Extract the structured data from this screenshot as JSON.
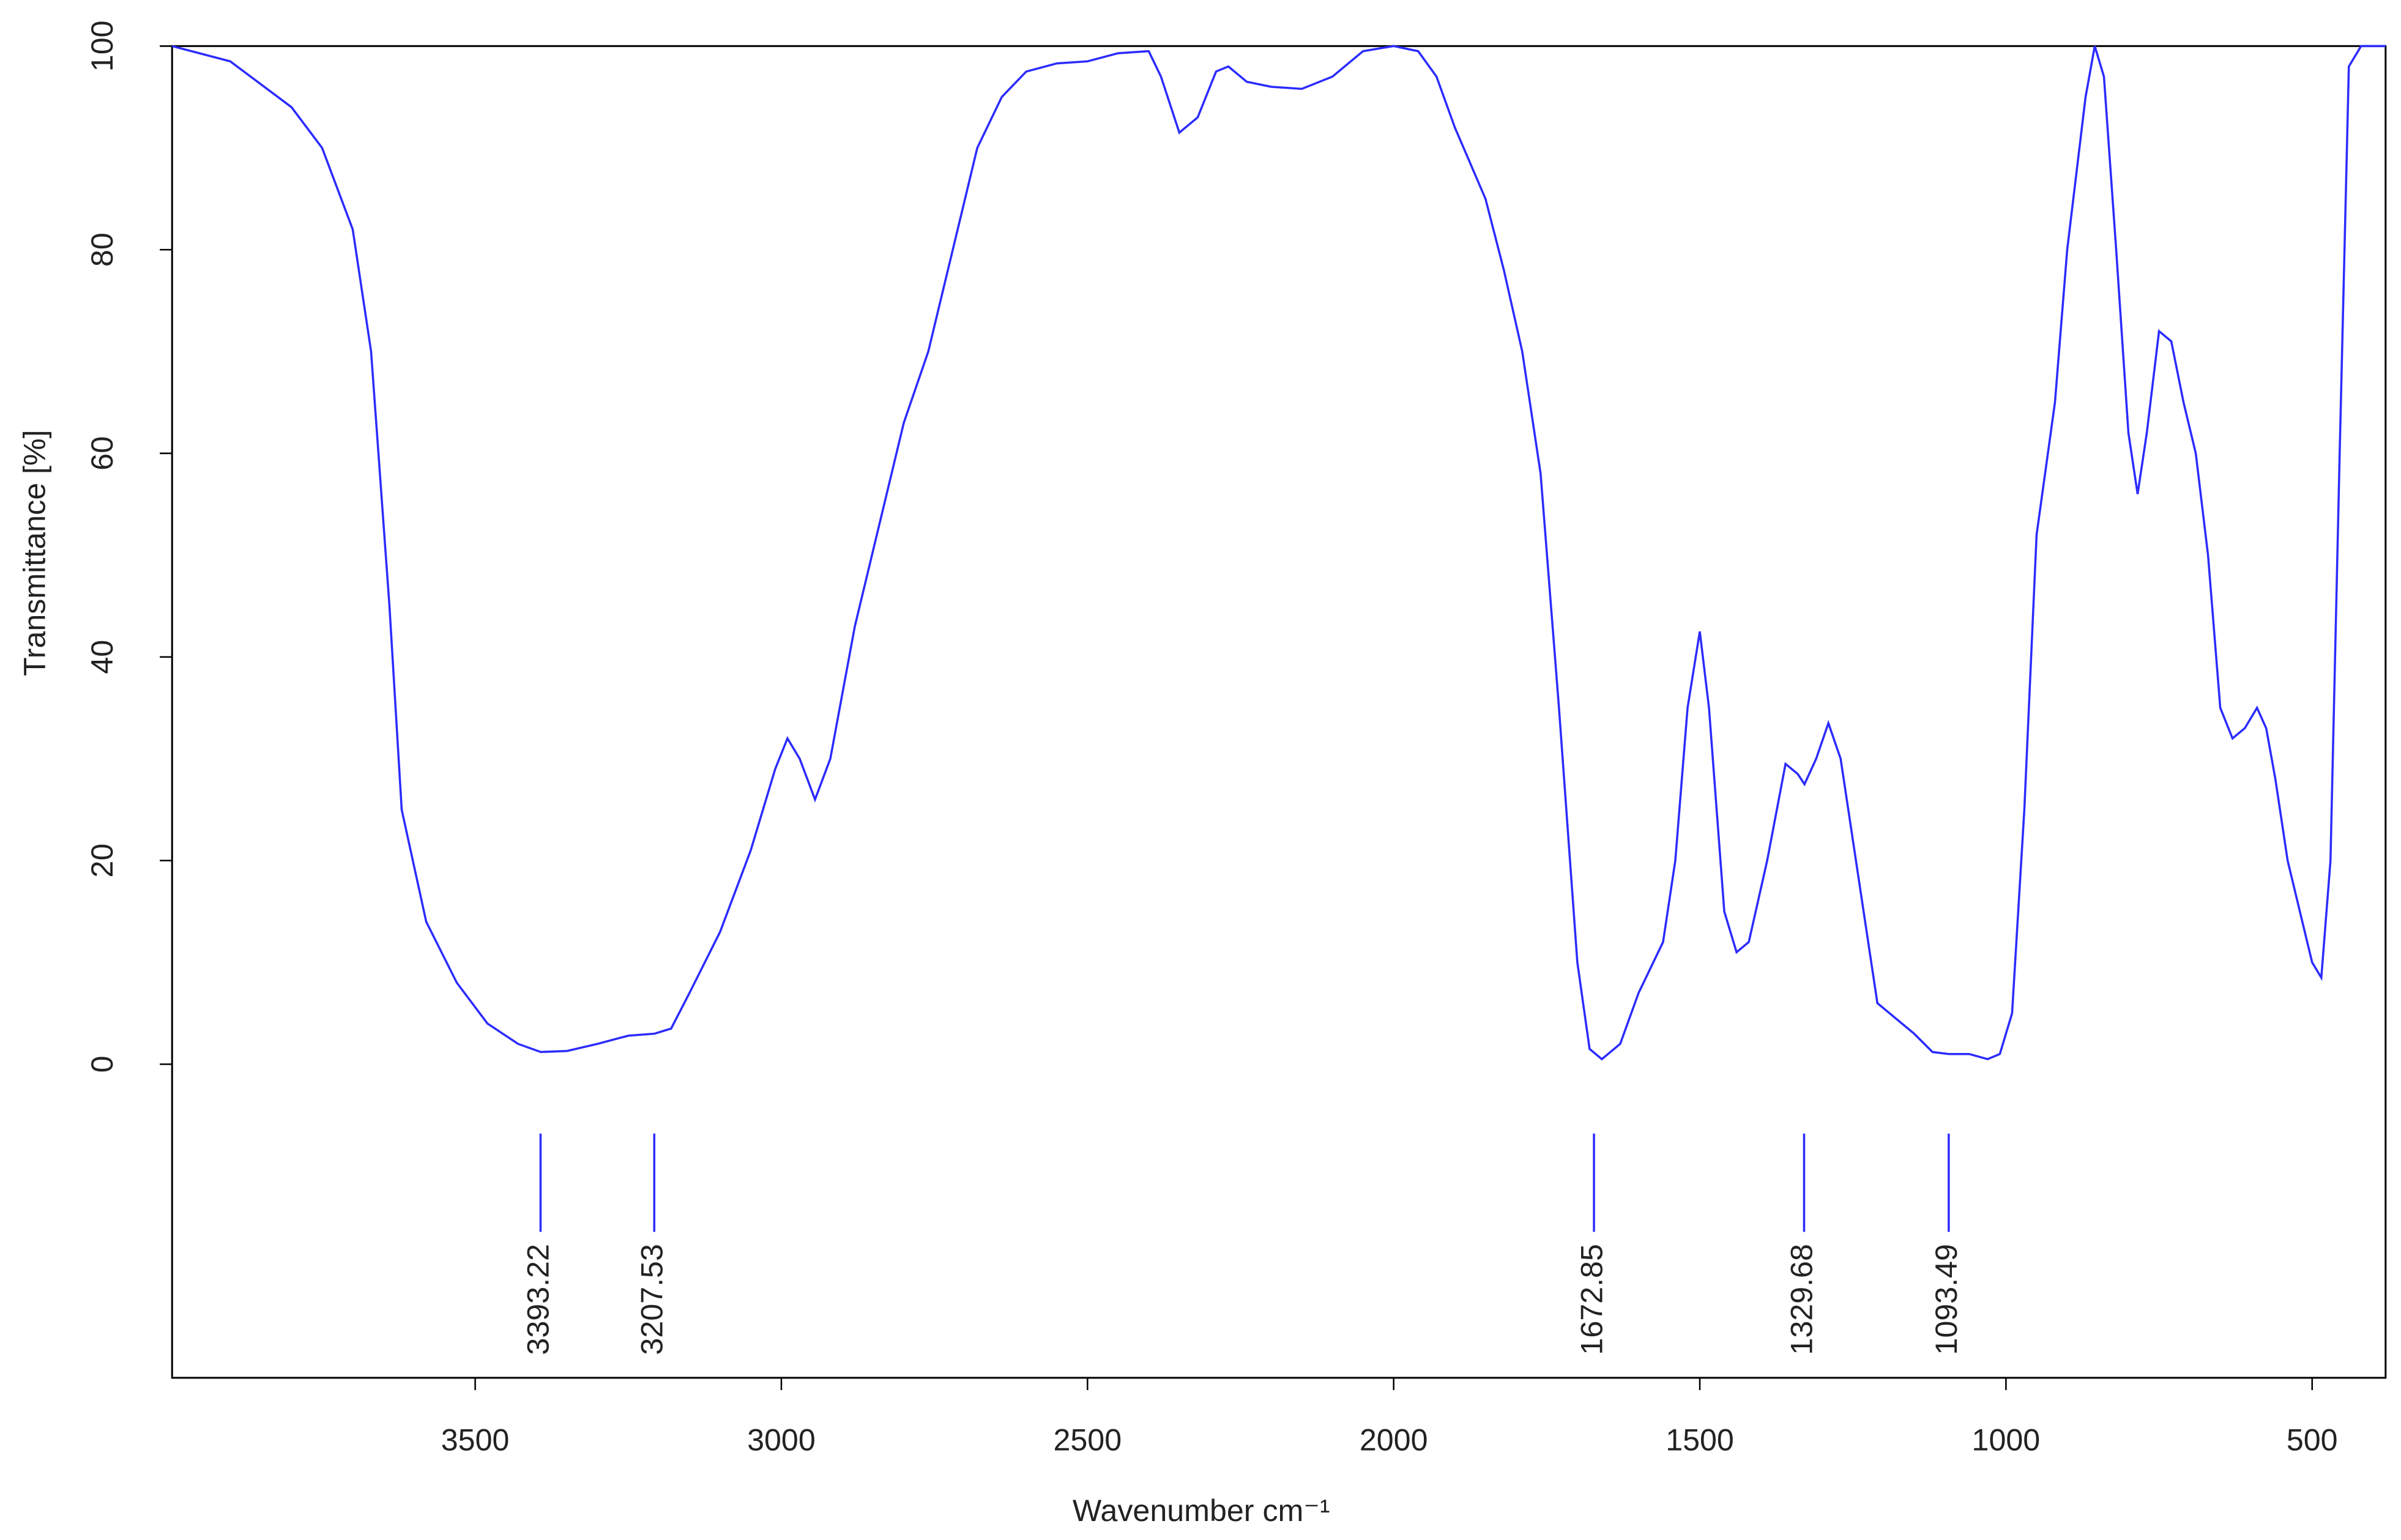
{
  "chart_data": {
    "type": "line",
    "xlabel": "Wavenumber cm⁻¹",
    "ylabel": "Transmittance [%]",
    "xlim": [
      3995,
      380
    ],
    "ylim": [
      -30.8,
      100
    ],
    "xticks": [
      3500,
      3000,
      2500,
      2000,
      1500,
      1000,
      500
    ],
    "yticks": [
      0,
      20,
      40,
      60,
      80,
      100
    ],
    "series": [
      {
        "color": "#2b2bff",
        "x": [
          3995,
          3900,
          3800,
          3750,
          3700,
          3670,
          3640,
          3620,
          3580,
          3530,
          3480,
          3430,
          3393,
          3350,
          3300,
          3250,
          3207,
          3180,
          3150,
          3100,
          3050,
          3010,
          2990,
          2970,
          2945,
          2920,
          2880,
          2840,
          2800,
          2760,
          2720,
          2680,
          2640,
          2600,
          2550,
          2500,
          2450,
          2400,
          2380,
          2350,
          2320,
          2290,
          2270,
          2240,
          2200,
          2150,
          2100,
          2050,
          2000,
          1960,
          1930,
          1900,
          1850,
          1820,
          1790,
          1760,
          1730,
          1700,
          1680,
          1660,
          1630,
          1600,
          1560,
          1540,
          1520,
          1500,
          1485,
          1460,
          1440,
          1420,
          1390,
          1360,
          1340,
          1329,
          1310,
          1290,
          1270,
          1240,
          1210,
          1180,
          1150,
          1120,
          1093,
          1060,
          1030,
          1010,
          990,
          970,
          950,
          920,
          900,
          870,
          855,
          840,
          820,
          800,
          785,
          770,
          750,
          730,
          710,
          690,
          670,
          650,
          630,
          610,
          590,
          575,
          560,
          540,
          520,
          500,
          485,
          470,
          455,
          440,
          420,
          380
        ],
        "values": [
          100,
          98.5,
          94,
          90,
          82,
          70,
          45,
          25,
          14,
          8,
          4,
          2,
          1.2,
          1.3,
          2,
          2.8,
          3,
          3.5,
          7,
          13,
          21,
          29,
          32,
          30,
          26,
          30,
          43,
          53,
          63,
          70,
          80,
          90,
          95,
          97.5,
          98.3,
          98.5,
          99.3,
          99.5,
          97,
          91.5,
          93,
          97.5,
          98,
          96.5,
          96,
          95.8,
          97,
          99.5,
          100,
          99.5,
          97,
          92,
          85,
          78,
          70,
          58,
          35,
          10,
          1.5,
          0.5,
          2,
          7,
          12,
          20,
          35,
          42.5,
          35,
          15,
          11,
          12,
          20,
          29.5,
          28.5,
          27.5,
          30,
          33.5,
          30,
          18,
          6,
          4.5,
          3,
          1.2,
          1,
          1,
          0.5,
          1,
          5,
          25,
          52,
          65,
          80,
          95,
          100,
          97,
          80,
          62,
          56,
          62,
          72,
          71,
          65,
          60,
          50,
          35,
          32,
          33,
          35,
          33,
          28,
          20,
          15,
          10,
          8.5,
          20,
          60,
          98,
          100,
          100
        ]
      }
    ],
    "peaks": [
      3393.22,
      3207.53,
      1672.85,
      1329.68,
      1093.49
    ],
    "peak_color": "#2b2bff"
  }
}
